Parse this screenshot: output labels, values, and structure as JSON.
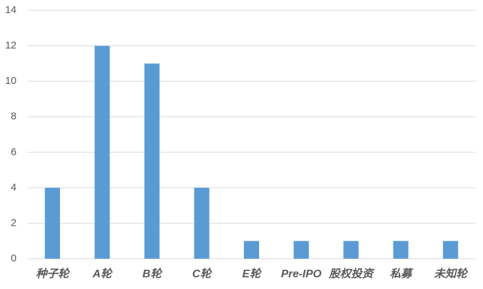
{
  "chart_data": {
    "type": "bar",
    "categories": [
      "种子轮",
      "A轮",
      "B轮",
      "C轮",
      "E轮",
      "Pre-IPO",
      "股权投资",
      "私募",
      "未知轮"
    ],
    "values": [
      4,
      12,
      11,
      4,
      1,
      1,
      1,
      1,
      1
    ],
    "color": "#5b9bd5",
    "ylim": [
      0,
      14
    ],
    "yticks": [
      0,
      2,
      4,
      6,
      8,
      10,
      12,
      14
    ],
    "grid": true
  }
}
